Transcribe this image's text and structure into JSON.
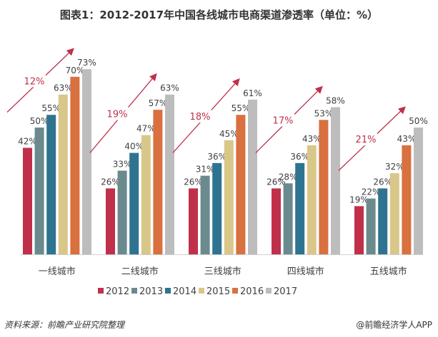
{
  "title": "图表1：2012-2017年中国各线城市电商渠道渗透率（单位：%）",
  "source": "资料来源：前瞻产业研究院整理",
  "credit": "@前瞻经济学人APP",
  "chart_data": {
    "type": "bar",
    "title": "图表1：2012-2017年中国各线城市电商渠道渗透率（单位：%）",
    "categories": [
      "一线城市",
      "二线城市",
      "三线城市",
      "四线城市",
      "五线城市"
    ],
    "series": [
      {
        "name": "2012",
        "color": "#c0304a",
        "values": [
          42,
          26,
          26,
          26,
          19
        ]
      },
      {
        "name": "2013",
        "color": "#6b8a8e",
        "values": [
          50,
          33,
          31,
          28,
          22
        ]
      },
      {
        "name": "2014",
        "color": "#2e7490",
        "values": [
          55,
          40,
          36,
          36,
          26
        ]
      },
      {
        "name": "2015",
        "color": "#d9c78a",
        "values": [
          63,
          47,
          45,
          43,
          32
        ]
      },
      {
        "name": "2016",
        "color": "#d9703f",
        "values": [
          70,
          57,
          55,
          53,
          43
        ]
      },
      {
        "name": "2017",
        "color": "#bdbdbd",
        "values": [
          73,
          63,
          61,
          58,
          50
        ]
      }
    ],
    "value_suffix": "%",
    "growth_annotations": [
      "12%",
      "19%",
      "18%",
      "17%",
      "21%"
    ],
    "growth_color": "#c0304a",
    "ylim": [
      0,
      75
    ],
    "grid": false,
    "legend_position": "bottom"
  }
}
